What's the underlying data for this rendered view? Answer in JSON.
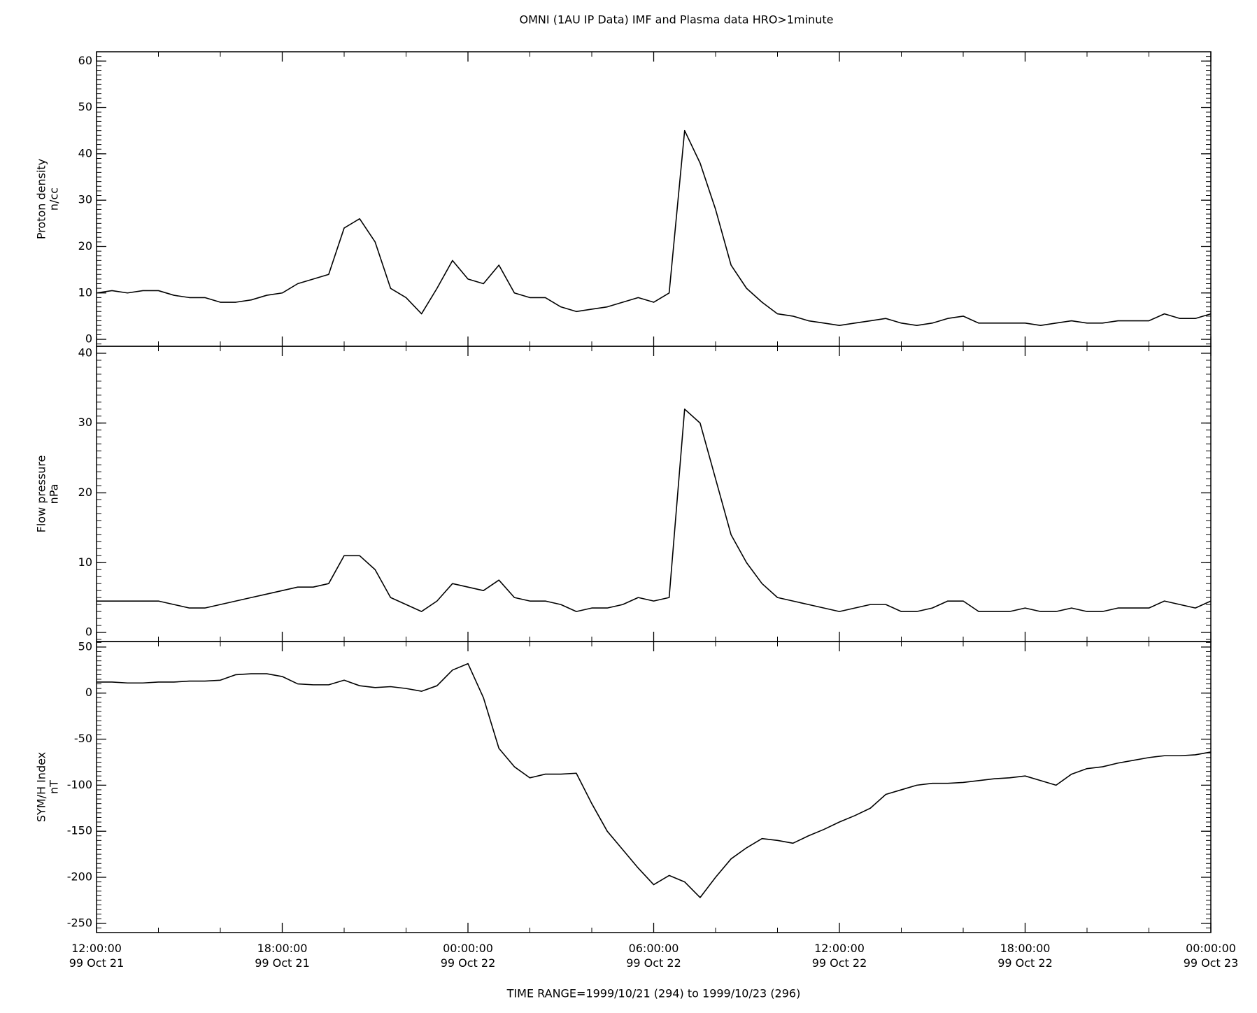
{
  "title": "OMNI (1AU IP Data)  IMF and Plasma data  HRO>1minute",
  "chart_data": [
    {
      "type": "line",
      "ylabel": "Proton density",
      "yunits": "n/cc",
      "xlim": [
        0,
        36
      ],
      "ylim": [
        -1.5,
        62
      ],
      "yticks": [
        0,
        10,
        20,
        30,
        40,
        50,
        60
      ],
      "x": [
        0,
        0.5,
        1,
        1.5,
        2,
        2.5,
        3,
        3.5,
        4,
        4.5,
        5,
        5.5,
        6,
        6.5,
        7,
        7.5,
        8,
        8.5,
        9,
        9.5,
        10,
        10.5,
        11,
        11.5,
        12,
        12.5,
        13,
        13.5,
        14,
        14.5,
        15,
        15.5,
        16,
        16.5,
        17,
        17.5,
        18,
        18.5,
        19,
        19.5,
        20,
        20.5,
        21,
        21.5,
        22,
        22.5,
        23,
        23.5,
        24,
        24.5,
        25,
        25.5,
        26,
        26.5,
        27,
        27.5,
        28,
        28.5,
        29,
        29.5,
        30,
        30.5,
        31,
        31.5,
        32,
        32.5,
        33,
        33.5,
        34,
        34.5,
        35,
        35.5,
        36
      ],
      "series": [
        {
          "color": "#000000",
          "values": [
            10,
            10.5,
            10,
            10.5,
            10.5,
            9.5,
            9,
            9,
            8,
            8,
            8.5,
            9.5,
            10,
            12,
            13,
            14,
            24,
            26,
            21,
            11,
            9,
            5.5,
            11,
            17,
            13,
            12,
            16,
            10,
            9,
            9,
            7,
            6,
            6.5,
            7,
            8,
            9,
            8,
            10,
            45,
            38,
            28,
            16,
            11,
            8,
            5.5,
            5,
            4,
            3.5,
            3,
            3.5,
            4,
            4.5,
            3.5,
            3,
            3.5,
            4.5,
            5,
            3.5,
            3.5,
            3.5,
            3.5,
            3,
            3.5,
            4,
            3.5,
            3.5,
            4,
            4,
            4,
            5.5,
            4.5,
            4.5,
            5.5
          ]
        }
      ]
    },
    {
      "type": "line",
      "ylabel": "Flow pressure",
      "yunits": "nPa",
      "xlim": [
        0,
        36
      ],
      "ylim": [
        -1.3,
        41
      ],
      "yticks": [
        0,
        10,
        20,
        30,
        40
      ],
      "x": [
        0,
        0.5,
        1,
        1.5,
        2,
        2.5,
        3,
        3.5,
        4,
        4.5,
        5,
        5.5,
        6,
        6.5,
        7,
        7.5,
        8,
        8.5,
        9,
        9.5,
        10,
        10.5,
        11,
        11.5,
        12,
        12.5,
        13,
        13.5,
        14,
        14.5,
        15,
        15.5,
        16,
        16.5,
        17,
        17.5,
        18,
        18.5,
        19,
        19.5,
        20,
        20.5,
        21,
        21.5,
        22,
        22.5,
        23,
        23.5,
        24,
        24.5,
        25,
        25.5,
        26,
        26.5,
        27,
        27.5,
        28,
        28.5,
        29,
        29.5,
        30,
        30.5,
        31,
        31.5,
        32,
        32.5,
        33,
        33.5,
        34,
        34.5,
        35,
        35.5,
        36
      ],
      "series": [
        {
          "color": "#000000",
          "values": [
            4.5,
            4.5,
            4.5,
            4.5,
            4.5,
            4,
            3.5,
            3.5,
            4,
            4.5,
            5,
            5.5,
            6,
            6.5,
            6.5,
            7,
            11,
            11,
            9,
            5,
            4,
            3,
            4.5,
            7,
            6.5,
            6,
            7.5,
            5,
            4.5,
            4.5,
            4,
            3,
            3.5,
            3.5,
            4,
            5,
            4.5,
            5,
            32,
            30,
            22,
            14,
            10,
            7,
            5,
            4.5,
            4,
            3.5,
            3,
            3.5,
            4,
            4,
            3,
            3,
            3.5,
            4.5,
            4.5,
            3,
            3,
            3,
            3.5,
            3,
            3,
            3.5,
            3,
            3,
            3.5,
            3.5,
            3.5,
            4.5,
            4,
            3.5,
            4.5
          ]
        }
      ]
    },
    {
      "type": "line",
      "ylabel": "SYM/H Index",
      "yunits": "nT",
      "xlim": [
        0,
        36
      ],
      "ylim": [
        -260,
        56
      ],
      "yticks": [
        -250,
        -200,
        -150,
        -100,
        -50,
        0,
        50
      ],
      "xticks": [
        {
          "value": 0,
          "label": "12:00:00\n99 Oct 21"
        },
        {
          "value": 6,
          "label": "18:00:00\n99 Oct 21"
        },
        {
          "value": 12,
          "label": "00:00:00\n99 Oct 22"
        },
        {
          "value": 18,
          "label": "06:00:00\n99 Oct 22"
        },
        {
          "value": 24,
          "label": "12:00:00\n99 Oct 22"
        },
        {
          "value": 30,
          "label": "18:00:00\n99 Oct 22"
        },
        {
          "value": 36,
          "label": "00:00:00\n99 Oct 23"
        }
      ],
      "xlabel": "TIME RANGE=1999/10/21 (294) to 1999/10/23 (296)",
      "x": [
        0,
        0.5,
        1,
        1.5,
        2,
        2.5,
        3,
        3.5,
        4,
        4.5,
        5,
        5.5,
        6,
        6.5,
        7,
        7.5,
        8,
        8.5,
        9,
        9.5,
        10,
        10.5,
        11,
        11.5,
        12,
        12.5,
        13,
        13.5,
        14,
        14.5,
        15,
        15.5,
        16,
        16.5,
        17,
        17.5,
        18,
        18.5,
        19,
        19.5,
        20,
        20.5,
        21,
        21.5,
        22,
        22.5,
        23,
        23.5,
        24,
        24.5,
        25,
        25.5,
        26,
        26.5,
        27,
        27.5,
        28,
        28.5,
        29,
        29.5,
        30,
        30.5,
        31,
        31.5,
        32,
        32.5,
        33,
        33.5,
        34,
        34.5,
        35,
        35.5,
        36
      ],
      "series": [
        {
          "color": "#000000",
          "values": [
            12,
            12,
            11,
            11,
            12,
            12,
            13,
            13,
            14,
            20,
            21,
            21,
            18,
            10,
            9,
            9,
            14,
            8,
            6,
            7,
            5,
            2,
            8,
            25,
            32,
            -5,
            -60,
            -80,
            -92,
            -88,
            -88,
            -87,
            -120,
            -150,
            -170,
            -190,
            -208,
            -198,
            -205,
            -222,
            -200,
            -180,
            -168,
            -158,
            -160,
            -163,
            -155,
            -148,
            -140,
            -133,
            -125,
            -110,
            -105,
            -100,
            -98,
            -98,
            -97,
            -95,
            -93,
            -92,
            -90,
            -95,
            -100,
            -88,
            -82,
            -80,
            -76,
            -73,
            -70,
            -68,
            -68,
            -67,
            -64
          ]
        }
      ]
    }
  ]
}
